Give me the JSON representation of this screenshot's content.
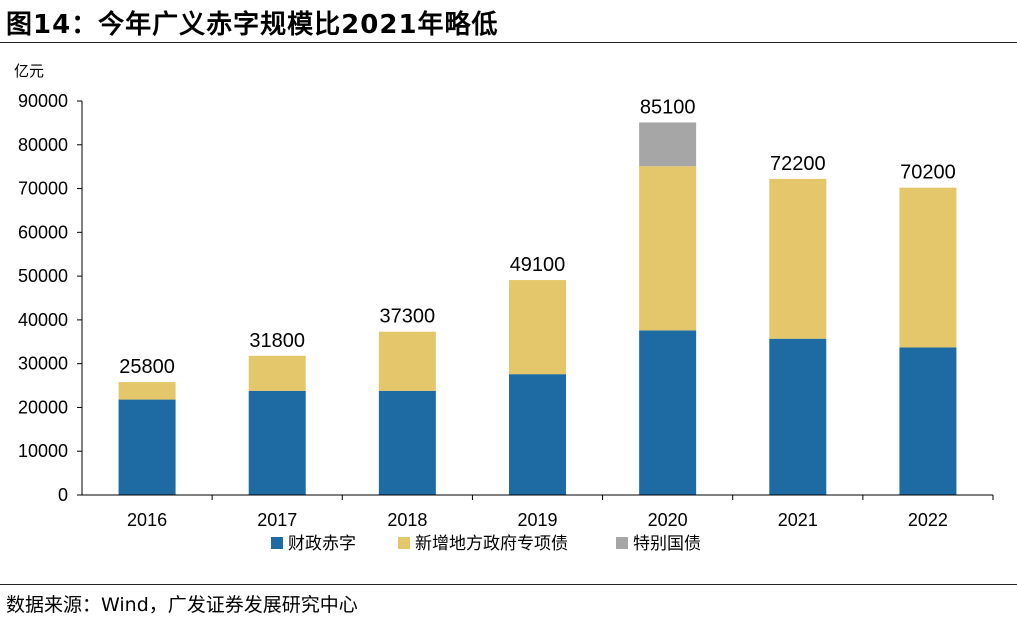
{
  "page": {
    "title": "图14：今年广义赤字规模比2021年略低",
    "source": "数据来源：Wind，广发证券发展研究中心"
  },
  "chart_data": {
    "type": "bar",
    "stacked": true,
    "unit_label": "亿元",
    "categories": [
      "2016",
      "2017",
      "2018",
      "2019",
      "2020",
      "2021",
      "2022"
    ],
    "series": [
      {
        "name": "财政赤字",
        "color": "#1e6aa3",
        "values": [
          21800,
          23800,
          23800,
          27600,
          37600,
          35700,
          33700
        ]
      },
      {
        "name": "新增地方政府专项债",
        "color": "#e4c76b",
        "values": [
          4000,
          8000,
          13500,
          21500,
          37500,
          36500,
          36500
        ]
      },
      {
        "name": "特别国债",
        "color": "#a6a6a6",
        "values": [
          0,
          0,
          0,
          0,
          10000,
          0,
          0
        ]
      }
    ],
    "totals": [
      "25800",
      "31800",
      "37300",
      "49100",
      "85100",
      "72200",
      "70200"
    ],
    "ylim": [
      0,
      90000
    ],
    "yticks": [
      "0",
      "10000",
      "20000",
      "30000",
      "40000",
      "50000",
      "60000",
      "70000",
      "80000",
      "90000"
    ],
    "legend_position": "bottom"
  }
}
